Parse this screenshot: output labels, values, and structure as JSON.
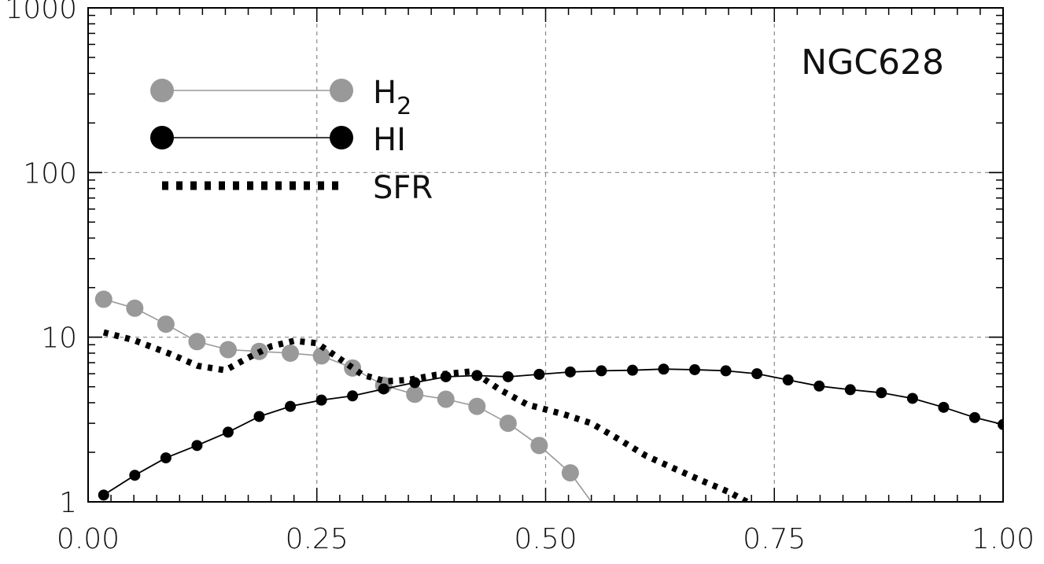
{
  "chart_data": {
    "type": "line",
    "annotation": "NGC628",
    "xlim": [
      0.0,
      1.0
    ],
    "ylim": [
      1,
      1000
    ],
    "yscale": "log",
    "grid": true,
    "legend_position": "top-left",
    "x_ticks": [
      0.0,
      0.25,
      0.5,
      0.75,
      1.0
    ],
    "x_tick_labels": [
      "0.00",
      "0.25",
      "0.50",
      "0.75",
      "1.00"
    ],
    "y_ticks": [
      1,
      10,
      100,
      1000
    ],
    "y_tick_labels": [
      "1",
      "10",
      "100",
      "1000"
    ],
    "series": [
      {
        "name": "H2",
        "legend_main": "H",
        "legend_sub": "2",
        "color": "#999999",
        "style": "line-with-large-markers",
        "x": [
          0.017,
          0.051,
          0.085,
          0.119,
          0.153,
          0.187,
          0.221,
          0.255,
          0.289,
          0.323,
          0.357,
          0.391,
          0.425,
          0.459,
          0.493,
          0.527,
          0.55
        ],
        "y": [
          17.0,
          15.0,
          12.0,
          9.4,
          8.4,
          8.2,
          8.0,
          7.7,
          6.5,
          5.1,
          4.5,
          4.2,
          3.8,
          3.0,
          2.2,
          1.5,
          1.0
        ]
      },
      {
        "name": "HI",
        "color": "#000000",
        "style": "line-with-small-markers",
        "x": [
          0.017,
          0.051,
          0.085,
          0.119,
          0.153,
          0.187,
          0.221,
          0.255,
          0.289,
          0.323,
          0.357,
          0.391,
          0.425,
          0.459,
          0.493,
          0.527,
          0.561,
          0.595,
          0.629,
          0.663,
          0.697,
          0.731,
          0.765,
          0.799,
          0.833,
          0.867,
          0.901,
          0.935,
          0.969,
          1.0
        ],
        "y": [
          1.1,
          1.45,
          1.85,
          2.2,
          2.65,
          3.3,
          3.8,
          4.15,
          4.4,
          4.85,
          5.3,
          5.75,
          5.85,
          5.75,
          5.95,
          6.15,
          6.25,
          6.3,
          6.4,
          6.35,
          6.25,
          6.0,
          5.5,
          5.05,
          4.8,
          4.6,
          4.25,
          3.75,
          3.25,
          2.95
        ]
      },
      {
        "name": "SFR",
        "color": "#000000",
        "style": "thick-dotted",
        "x": [
          0.017,
          0.05,
          0.09,
          0.12,
          0.15,
          0.175,
          0.2,
          0.225,
          0.25,
          0.275,
          0.3,
          0.325,
          0.35,
          0.38,
          0.42,
          0.45,
          0.48,
          0.52,
          0.55,
          0.58,
          0.61,
          0.64,
          0.67,
          0.7,
          0.72
        ],
        "y": [
          10.7,
          9.6,
          7.9,
          6.7,
          6.3,
          7.5,
          8.8,
          9.5,
          9.2,
          7.4,
          5.9,
          5.4,
          5.5,
          5.9,
          6.2,
          4.8,
          3.9,
          3.4,
          3.0,
          2.4,
          1.9,
          1.6,
          1.35,
          1.15,
          1.0
        ]
      }
    ]
  }
}
